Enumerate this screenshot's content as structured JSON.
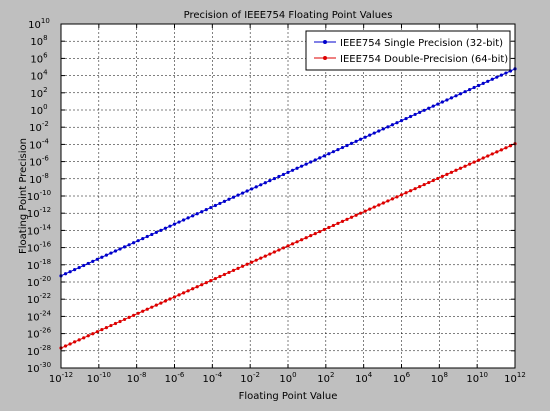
{
  "chart_data": {
    "type": "line",
    "title": "Precision of IEEE754 Floating Point Values",
    "xlabel": "Floating Point Value",
    "ylabel": "Floating Point Precision",
    "xscale": "log",
    "yscale": "log",
    "xlim": [
      1e-12,
      1000000000000.0
    ],
    "ylim": [
      1e-30,
      10000000000.0
    ],
    "grid": true,
    "legend_position": "top-right",
    "x_ticks": [
      {
        "base": "10",
        "exp": "-12"
      },
      {
        "base": "10",
        "exp": "-10"
      },
      {
        "base": "10",
        "exp": "-8"
      },
      {
        "base": "10",
        "exp": "-6"
      },
      {
        "base": "10",
        "exp": "-4"
      },
      {
        "base": "10",
        "exp": "-2"
      },
      {
        "base": "10",
        "exp": "0"
      },
      {
        "base": "10",
        "exp": "2"
      },
      {
        "base": "10",
        "exp": "4"
      },
      {
        "base": "10",
        "exp": "6"
      },
      {
        "base": "10",
        "exp": "8"
      },
      {
        "base": "10",
        "exp": "10"
      },
      {
        "base": "10",
        "exp": "12"
      }
    ],
    "y_ticks": [
      {
        "base": "10",
        "exp": "-30"
      },
      {
        "base": "10",
        "exp": "-28"
      },
      {
        "base": "10",
        "exp": "-26"
      },
      {
        "base": "10",
        "exp": "-24"
      },
      {
        "base": "10",
        "exp": "-22"
      },
      {
        "base": "10",
        "exp": "-20"
      },
      {
        "base": "10",
        "exp": "-18"
      },
      {
        "base": "10",
        "exp": "-16"
      },
      {
        "base": "10",
        "exp": "-14"
      },
      {
        "base": "10",
        "exp": "-12"
      },
      {
        "base": "10",
        "exp": "-10"
      },
      {
        "base": "10",
        "exp": "-8"
      },
      {
        "base": "10",
        "exp": "-6"
      },
      {
        "base": "10",
        "exp": "-4"
      },
      {
        "base": "10",
        "exp": "-2"
      },
      {
        "base": "10",
        "exp": "0"
      },
      {
        "base": "10",
        "exp": "2"
      },
      {
        "base": "10",
        "exp": "4"
      },
      {
        "base": "10",
        "exp": "6"
      },
      {
        "base": "10",
        "exp": "8"
      },
      {
        "base": "10",
        "exp": "10"
      }
    ],
    "series": [
      {
        "name": "IEEE754 Single Precision (32-bit)",
        "color": "#0000cc",
        "marker": "dot",
        "x": [
          1e-12,
          1000000000000.0
        ],
        "y": [
          5.2e-20,
          60000.0
        ]
      },
      {
        "name": "IEEE754 Double-Precision (64-bit)",
        "color": "#dd0000",
        "marker": "dot",
        "x": [
          1e-12,
          1000000000000.0
        ],
        "y": [
          2.1e-28,
          0.00012
        ]
      }
    ]
  }
}
